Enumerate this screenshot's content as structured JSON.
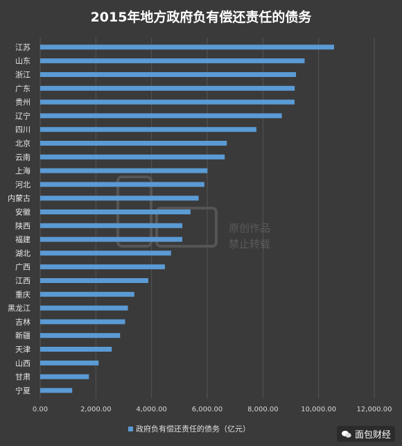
{
  "chart_data": {
    "type": "bar",
    "orientation": "horizontal",
    "title": "2015年地方政府负有偿还责任的债务",
    "categories": [
      "江苏",
      "山东",
      "浙江",
      "广东",
      "贵州",
      "辽宁",
      "四川",
      "北京",
      "云南",
      "上海",
      "河北",
      "内蒙古",
      "安徽",
      "陕西",
      "福建",
      "湖北",
      "广西",
      "江西",
      "重庆",
      "黑龙江",
      "吉林",
      "新疆",
      "天津",
      "山西",
      "甘肃",
      "宁夏"
    ],
    "series": [
      {
        "name": "政府负有偿还责任的债务（亿元）",
        "values": [
          10556,
          9497,
          9188,
          9141,
          9135,
          8679,
          7765,
          6704,
          6627,
          6009,
          5897,
          5691,
          5400,
          5106,
          5102,
          4700,
          4480,
          3880,
          3380,
          3150,
          3050,
          2870,
          2570,
          2100,
          1750,
          1150
        ],
        "color": "#5b9bd5"
      }
    ],
    "xlim": [
      0,
      12000
    ],
    "xticks": [
      "0.00",
      "2,000.00",
      "4,000.00",
      "6,000.00",
      "8,000.00",
      "10,000.00",
      "12,000.00"
    ],
    "grid": true,
    "legend_position": "bottom-center"
  },
  "watermark": {
    "line1": "原创作品",
    "line2": "禁止转载"
  },
  "brand": {
    "label": "面包财经",
    "icon": "wechat-icon"
  }
}
